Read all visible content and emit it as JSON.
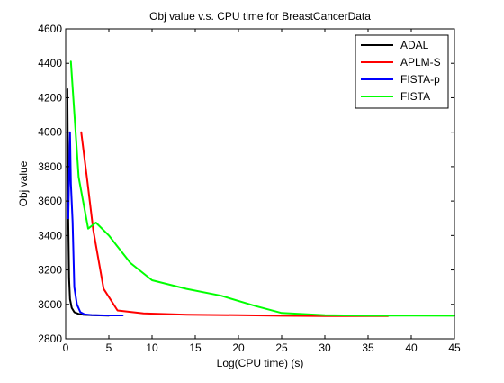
{
  "chart_data": {
    "type": "line",
    "title": "Obj value v.s. CPU time for BreastCancerData",
    "xlabel": "Log(CPU time) (s)",
    "ylabel": "Obj value",
    "xlim": [
      0,
      45
    ],
    "ylim": [
      2800,
      4600
    ],
    "xticks": [
      0,
      5,
      10,
      15,
      20,
      25,
      30,
      35,
      40,
      45
    ],
    "yticks": [
      2800,
      3000,
      3200,
      3400,
      3600,
      3800,
      4000,
      4200,
      4400,
      4600
    ],
    "grid": false,
    "legend_position": "top-right",
    "series": [
      {
        "name": "ADAL",
        "color": "#000000",
        "points": [
          [
            0.2,
            4250
          ],
          [
            0.3,
            3480
          ],
          [
            0.4,
            3150
          ],
          [
            0.5,
            3030
          ],
          [
            0.7,
            2980
          ],
          [
            1.0,
            2955
          ],
          [
            1.5,
            2945
          ],
          [
            2.0,
            2940
          ],
          [
            3.0,
            2937
          ],
          [
            4.0,
            2936
          ],
          [
            5.0,
            2935
          ]
        ]
      },
      {
        "name": "APLM-S",
        "color": "#ff0000",
        "points": [
          [
            1.8,
            4000
          ],
          [
            2.5,
            3720
          ],
          [
            3.2,
            3430
          ],
          [
            4.4,
            3090
          ],
          [
            6.0,
            2965
          ],
          [
            9.0,
            2948
          ],
          [
            14.0,
            2940
          ],
          [
            20.0,
            2937
          ],
          [
            25.0,
            2934
          ],
          [
            30.0,
            2932
          ],
          [
            37.3,
            2932
          ]
        ]
      },
      {
        "name": "FISTA-p",
        "color": "#0000ff",
        "points": [
          [
            0.3,
            3500
          ],
          [
            0.5,
            4000
          ],
          [
            0.6,
            3700
          ],
          [
            0.8,
            3480
          ],
          [
            1.0,
            3100
          ],
          [
            1.3,
            3000
          ],
          [
            1.7,
            2955
          ],
          [
            2.2,
            2942
          ],
          [
            3.0,
            2938
          ],
          [
            4.5,
            2936
          ],
          [
            6.6,
            2936
          ]
        ]
      },
      {
        "name": "FISTA",
        "color": "#00ff00",
        "points": [
          [
            0.6,
            4410
          ],
          [
            1.5,
            3740
          ],
          [
            2.6,
            3440
          ],
          [
            3.5,
            3475
          ],
          [
            5.0,
            3400
          ],
          [
            7.5,
            3240
          ],
          [
            10.0,
            3140
          ],
          [
            14.0,
            3090
          ],
          [
            18.0,
            3050
          ],
          [
            22.0,
            2990
          ],
          [
            25.0,
            2950
          ],
          [
            30.0,
            2937
          ],
          [
            35.0,
            2935
          ],
          [
            40.0,
            2935
          ],
          [
            45.0,
            2934
          ]
        ]
      }
    ]
  }
}
